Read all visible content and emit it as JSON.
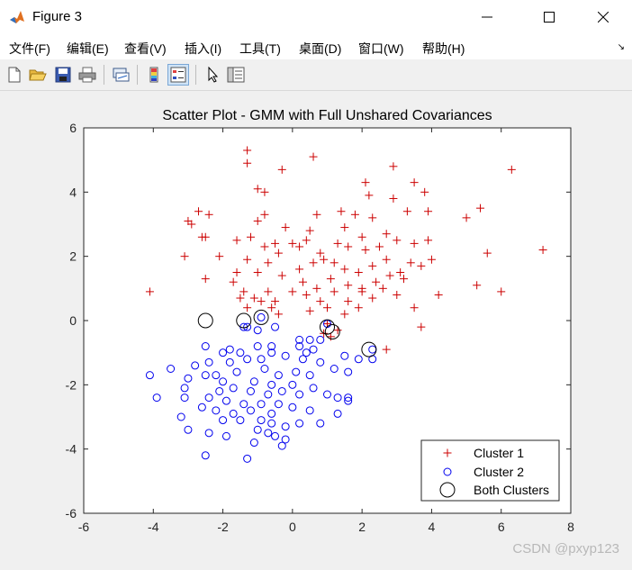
{
  "window": {
    "title": "Figure 3",
    "minimize_icon": "minimize-icon",
    "maximize_icon": "maximize-icon",
    "close_icon": "close-icon"
  },
  "menu": {
    "items": [
      "文件(F)",
      "编辑(E)",
      "查看(V)",
      "插入(I)",
      "工具(T)",
      "桌面(D)",
      "窗口(W)",
      "帮助(H)"
    ]
  },
  "toolbar": {
    "icons": [
      "new-figure-icon",
      "open-file-icon",
      "save-icon",
      "print-icon",
      "link-plot-icon",
      "colorbar-icon",
      "legend-icon",
      "pointer-icon",
      "property-inspector-icon"
    ]
  },
  "watermark": "CSDN @pxyp123",
  "colors": {
    "cluster1": "#cc0000",
    "cluster2": "#0000ee",
    "both": "#000000"
  },
  "chart_data": {
    "type": "scatter",
    "title": "Scatter Plot - GMM with Full Unshared Covariances",
    "xlabel": "",
    "ylabel": "",
    "xlim": [
      -6,
      8
    ],
    "ylim": [
      -6,
      6
    ],
    "xticks": [
      "-6",
      "-4",
      "-2",
      "0",
      "2",
      "4",
      "6",
      "8"
    ],
    "yticks": [
      "-6",
      "-4",
      "-2",
      "0",
      "2",
      "4",
      "6"
    ],
    "grid": false,
    "legend_position": "bottom-right",
    "series": [
      {
        "name": "Cluster 1",
        "marker": "plus",
        "points": [
          [
            -1.3,
            5.3
          ],
          [
            -1.3,
            4.9
          ],
          [
            0.6,
            5.1
          ],
          [
            -1.0,
            4.1
          ],
          [
            -0.3,
            4.7
          ],
          [
            2.9,
            4.8
          ],
          [
            6.3,
            4.7
          ],
          [
            -0.8,
            4.0
          ],
          [
            2.1,
            4.3
          ],
          [
            3.5,
            4.3
          ],
          [
            3.8,
            4.0
          ],
          [
            2.2,
            3.9
          ],
          [
            2.9,
            3.8
          ],
          [
            -3.0,
            3.1
          ],
          [
            -2.7,
            3.4
          ],
          [
            -2.4,
            3.3
          ],
          [
            0.7,
            3.3
          ],
          [
            1.4,
            3.4
          ],
          [
            1.8,
            3.3
          ],
          [
            2.3,
            3.2
          ],
          [
            3.3,
            3.4
          ],
          [
            3.9,
            3.4
          ],
          [
            5.0,
            3.2
          ],
          [
            5.4,
            3.5
          ],
          [
            -0.8,
            3.3
          ],
          [
            -1.0,
            3.1
          ],
          [
            -2.9,
            3.0
          ],
          [
            -0.2,
            2.9
          ],
          [
            0.5,
            2.8
          ],
          [
            1.5,
            2.9
          ],
          [
            2.0,
            2.6
          ],
          [
            2.7,
            2.7
          ],
          [
            -2.6,
            2.6
          ],
          [
            -2.5,
            2.6
          ],
          [
            -1.6,
            2.5
          ],
          [
            -1.2,
            2.6
          ],
          [
            -0.8,
            2.3
          ],
          [
            -0.5,
            2.4
          ],
          [
            0.0,
            2.4
          ],
          [
            0.2,
            2.3
          ],
          [
            0.4,
            2.5
          ],
          [
            0.8,
            2.1
          ],
          [
            1.3,
            2.4
          ],
          [
            1.6,
            2.3
          ],
          [
            2.1,
            2.2
          ],
          [
            2.5,
            2.3
          ],
          [
            3.0,
            2.5
          ],
          [
            3.5,
            2.4
          ],
          [
            3.9,
            2.5
          ],
          [
            5.6,
            2.1
          ],
          [
            7.2,
            2.2
          ],
          [
            -3.1,
            2.0
          ],
          [
            -2.1,
            2.0
          ],
          [
            -1.6,
            1.5
          ],
          [
            -1.3,
            1.9
          ],
          [
            -1.0,
            1.5
          ],
          [
            -0.7,
            1.8
          ],
          [
            -0.4,
            2.1
          ],
          [
            0.2,
            1.6
          ],
          [
            0.6,
            1.8
          ],
          [
            0.9,
            1.9
          ],
          [
            1.2,
            1.8
          ],
          [
            1.5,
            1.6
          ],
          [
            1.9,
            1.5
          ],
          [
            2.3,
            1.7
          ],
          [
            2.7,
            1.9
          ],
          [
            3.1,
            1.5
          ],
          [
            3.4,
            1.8
          ],
          [
            3.7,
            1.7
          ],
          [
            4.0,
            1.9
          ],
          [
            -0.3,
            1.4
          ],
          [
            0.3,
            1.2
          ],
          [
            0.7,
            1.0
          ],
          [
            1.1,
            1.3
          ],
          [
            1.6,
            1.1
          ],
          [
            2.0,
            1.0
          ],
          [
            2.4,
            1.2
          ],
          [
            2.8,
            1.4
          ],
          [
            3.2,
            1.3
          ],
          [
            -2.5,
            1.3
          ],
          [
            -1.7,
            1.2
          ],
          [
            -1.4,
            0.9
          ],
          [
            -1.1,
            0.7
          ],
          [
            -0.7,
            0.9
          ],
          [
            -0.5,
            0.6
          ],
          [
            0.0,
            0.9
          ],
          [
            0.4,
            0.8
          ],
          [
            0.8,
            0.6
          ],
          [
            1.2,
            0.9
          ],
          [
            1.6,
            0.6
          ],
          [
            2.0,
            0.9
          ],
          [
            2.3,
            0.7
          ],
          [
            2.6,
            1.0
          ],
          [
            3.0,
            0.8
          ],
          [
            4.2,
            0.8
          ],
          [
            5.3,
            1.1
          ],
          [
            6.0,
            0.9
          ],
          [
            -4.1,
            0.9
          ],
          [
            -1.5,
            0.7
          ],
          [
            -0.9,
            0.6
          ],
          [
            -0.4,
            0.2
          ],
          [
            0.5,
            0.3
          ],
          [
            1.0,
            0.4
          ],
          [
            1.5,
            0.2
          ],
          [
            1.9,
            0.4
          ],
          [
            3.5,
            0.4
          ],
          [
            3.7,
            -0.2
          ],
          [
            1.0,
            -0.1
          ],
          [
            1.3,
            -0.3
          ],
          [
            0.9,
            -0.4
          ],
          [
            1.1,
            -0.5
          ],
          [
            2.7,
            -0.9
          ],
          [
            -1.3,
            0.4
          ],
          [
            -0.6,
            0.4
          ]
        ]
      },
      {
        "name": "Cluster 2",
        "marker": "circle",
        "points": [
          [
            -1.3,
            -0.2
          ],
          [
            -1.4,
            -0.2
          ],
          [
            -0.5,
            -0.2
          ],
          [
            -0.9,
            0.1
          ],
          [
            -1.0,
            -0.3
          ],
          [
            0.2,
            -0.6
          ],
          [
            0.5,
            -0.6
          ],
          [
            0.8,
            -0.6
          ],
          [
            -2.5,
            -0.8
          ],
          [
            -1.0,
            -0.8
          ],
          [
            -0.6,
            -0.8
          ],
          [
            0.2,
            -0.8
          ],
          [
            -2.0,
            -1.0
          ],
          [
            -1.5,
            -1.0
          ],
          [
            -0.6,
            -1.0
          ],
          [
            0.6,
            -0.9
          ],
          [
            1.5,
            -1.1
          ],
          [
            1.9,
            -1.2
          ],
          [
            -3.5,
            -1.5
          ],
          [
            -2.8,
            -1.4
          ],
          [
            -2.4,
            -1.3
          ],
          [
            -1.8,
            -1.3
          ],
          [
            -1.3,
            -1.2
          ],
          [
            -0.9,
            -1.2
          ],
          [
            -0.2,
            -1.1
          ],
          [
            0.3,
            -1.2
          ],
          [
            0.8,
            -1.3
          ],
          [
            1.2,
            -1.5
          ],
          [
            1.6,
            -1.6
          ],
          [
            -4.1,
            -1.7
          ],
          [
            -2.5,
            -1.7
          ],
          [
            -2.2,
            -1.7
          ],
          [
            -1.6,
            -1.6
          ],
          [
            -0.8,
            -1.5
          ],
          [
            -0.4,
            -1.7
          ],
          [
            0.1,
            -1.6
          ],
          [
            0.5,
            -1.7
          ],
          [
            -3.0,
            -1.8
          ],
          [
            -2.0,
            -1.9
          ],
          [
            -1.1,
            -1.9
          ],
          [
            -0.6,
            -2.0
          ],
          [
            0.0,
            -2.0
          ],
          [
            0.6,
            -2.1
          ],
          [
            -3.1,
            -2.1
          ],
          [
            -2.1,
            -2.2
          ],
          [
            -1.7,
            -2.1
          ],
          [
            -1.2,
            -2.2
          ],
          [
            -0.7,
            -2.3
          ],
          [
            -0.3,
            -2.2
          ],
          [
            0.2,
            -2.3
          ],
          [
            -3.9,
            -2.4
          ],
          [
            -3.1,
            -2.4
          ],
          [
            -2.4,
            -2.4
          ],
          [
            -1.9,
            -2.5
          ],
          [
            -1.4,
            -2.6
          ],
          [
            -0.9,
            -2.6
          ],
          [
            -0.4,
            -2.6
          ],
          [
            1.0,
            -2.3
          ],
          [
            1.3,
            -2.4
          ],
          [
            1.6,
            -2.5
          ],
          [
            -2.6,
            -2.7
          ],
          [
            -2.2,
            -2.8
          ],
          [
            -1.7,
            -2.9
          ],
          [
            -1.2,
            -2.8
          ],
          [
            -0.6,
            -2.9
          ],
          [
            0.0,
            -2.7
          ],
          [
            0.5,
            -2.8
          ],
          [
            1.3,
            -2.9
          ],
          [
            -3.2,
            -3.0
          ],
          [
            -2.0,
            -3.1
          ],
          [
            -1.5,
            -3.1
          ],
          [
            -0.9,
            -3.1
          ],
          [
            -0.6,
            -3.2
          ],
          [
            -0.2,
            -3.3
          ],
          [
            0.2,
            -3.2
          ],
          [
            0.8,
            -3.2
          ],
          [
            1.6,
            -2.4
          ],
          [
            -3.0,
            -3.4
          ],
          [
            -2.4,
            -3.5
          ],
          [
            -1.9,
            -3.6
          ],
          [
            -1.0,
            -3.4
          ],
          [
            -0.5,
            -3.6
          ],
          [
            -0.2,
            -3.7
          ],
          [
            -1.1,
            -3.8
          ],
          [
            -0.3,
            -3.9
          ],
          [
            -2.5,
            -4.2
          ],
          [
            -1.3,
            -4.3
          ],
          [
            -0.7,
            -3.5
          ],
          [
            0.4,
            -1.0
          ],
          [
            -1.8,
            -0.9
          ],
          [
            2.3,
            -1.2
          ],
          [
            1.0,
            -0.1
          ],
          [
            2.3,
            -0.9
          ]
        ]
      },
      {
        "name": "Both Clusters",
        "marker": "bigcircle",
        "points": [
          [
            -2.5,
            0.0
          ],
          [
            -1.4,
            0.0
          ],
          [
            -0.9,
            0.1
          ],
          [
            1.0,
            -0.2
          ],
          [
            1.15,
            -0.35
          ],
          [
            2.2,
            -0.9
          ]
        ]
      }
    ]
  }
}
